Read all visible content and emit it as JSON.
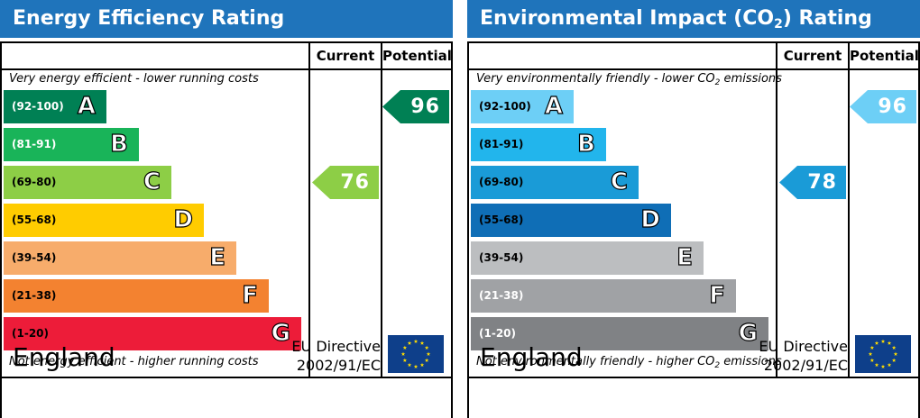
{
  "chart_data": [
    {
      "type": "bar",
      "title": "Energy Efficiency Rating",
      "columns": [
        "Current",
        "Potential"
      ],
      "top_note": "Very energy efficient - lower running costs",
      "bottom_note": "Not energy efficient - higher running costs",
      "bands": [
        {
          "range": "(92-100)",
          "letter": "A",
          "color": "#008054",
          "text_color": "#ffffff"
        },
        {
          "range": "(81-91)",
          "letter": "B",
          "color": "#19b459",
          "text_color": "#ffffff"
        },
        {
          "range": "(69-80)",
          "letter": "C",
          "color": "#8dce46",
          "text_color": "#000000"
        },
        {
          "range": "(55-68)",
          "letter": "D",
          "color": "#ffcc00",
          "text_color": "#000000"
        },
        {
          "range": "(39-54)",
          "letter": "E",
          "color": "#f7ac6b",
          "text_color": "#000000"
        },
        {
          "range": "(21-38)",
          "letter": "F",
          "color": "#f38230",
          "text_color": "#000000"
        },
        {
          "range": "(1-20)",
          "letter": "G",
          "color": "#ed1c39",
          "text_color": "#000000"
        }
      ],
      "current": {
        "value": 76,
        "band": "C",
        "color": "#8dce46"
      },
      "potential": {
        "value": 96,
        "band": "A",
        "color": "#008054"
      },
      "country": "England",
      "directive": [
        "EU Directive",
        "2002/91/EC"
      ]
    },
    {
      "type": "bar",
      "title_parts": [
        "Environmental Impact (CO",
        "2",
        ") Rating"
      ],
      "columns": [
        "Current",
        "Potential"
      ],
      "top_note_parts": [
        "Very environmentally friendly - lower CO",
        "2",
        " emissions"
      ],
      "bottom_note_parts": [
        "Not environmentally friendly - higher CO",
        "2",
        " emissions"
      ],
      "bands": [
        {
          "range": "(92-100)",
          "letter": "A",
          "color": "#6dcff6",
          "text_color": "#000000"
        },
        {
          "range": "(81-91)",
          "letter": "B",
          "color": "#22b5ec",
          "text_color": "#000000"
        },
        {
          "range": "(69-80)",
          "letter": "C",
          "color": "#1a9bd7",
          "text_color": "#000000"
        },
        {
          "range": "(55-68)",
          "letter": "D",
          "color": "#0f6eb6",
          "text_color": "#000000"
        },
        {
          "range": "(39-54)",
          "letter": "E",
          "color": "#bcbec0",
          "text_color": "#000000"
        },
        {
          "range": "(21-38)",
          "letter": "F",
          "color": "#a0a2a5",
          "text_color": "#ffffff"
        },
        {
          "range": "(1-20)",
          "letter": "G",
          "color": "#808285",
          "text_color": "#ffffff"
        }
      ],
      "current": {
        "value": 78,
        "band": "C",
        "color": "#1a9bd7"
      },
      "potential": {
        "value": 96,
        "band": "A",
        "color": "#6dcff6"
      },
      "country": "England",
      "directive": [
        "EU Directive",
        "2002/91/EC"
      ]
    }
  ]
}
